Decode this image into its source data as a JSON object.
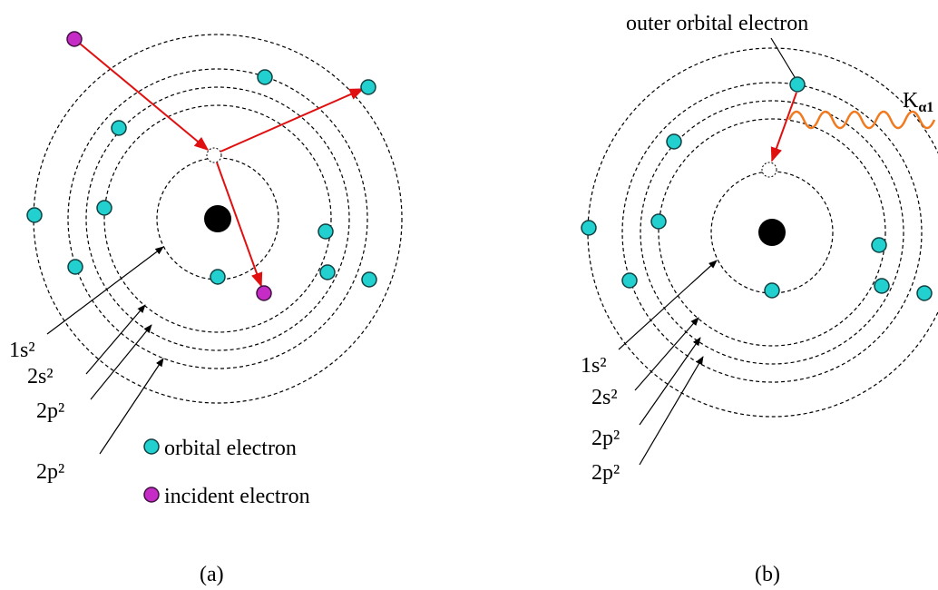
{
  "panels": [
    {
      "caption": "(a)",
      "shell_labels": [
        "1s²",
        "2s²",
        "2p²",
        "2p²"
      ],
      "legend": {
        "orbital": "orbital electron",
        "incident": "incident electron"
      }
    },
    {
      "caption": "(b)",
      "shell_labels": [
        "1s²",
        "2s²",
        "2p²",
        "2p²"
      ],
      "outer_label": "outer orbital electron",
      "emission": {
        "label": "K",
        "subscript": "α1"
      }
    }
  ]
}
